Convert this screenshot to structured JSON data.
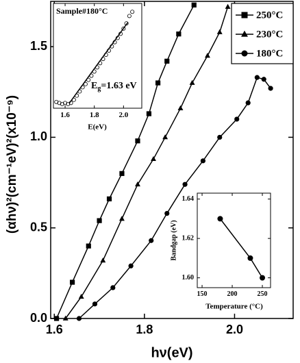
{
  "chart_data": [
    {
      "type": "scatter",
      "xlabel": "hν(eV)",
      "ylabel": "(αhν)²(cm⁻¹eV)²(x10⁻⁹)",
      "xlim": [
        1.592,
        2.13
      ],
      "ylim": [
        0,
        1.75
      ],
      "xticks": [
        1.6,
        1.8,
        {
          "value": 2.0,
          "label": "2.0"
        }
      ],
      "yticks": [
        {
          "value": 0,
          "label": "0.0"
        },
        0.5,
        {
          "value": 1.0,
          "label": "1.0"
        },
        1.5
      ],
      "legend": "upper right",
      "series": [
        {
          "name": "250°C",
          "marker": "square",
          "color": "#000000",
          "x": [
            1.605,
            1.64,
            1.676,
            1.7,
            1.722,
            1.75,
            1.785,
            1.81,
            1.83,
            1.85,
            1.876,
            1.91
          ],
          "values": [
            0.0,
            0.2,
            0.4,
            0.54,
            0.66,
            0.8,
            0.98,
            1.13,
            1.3,
            1.42,
            1.57,
            1.73
          ]
        },
        {
          "name": "230°C",
          "marker": "triangle",
          "color": "#000000",
          "x": [
            1.625,
            1.66,
            1.708,
            1.75,
            1.785,
            1.82,
            1.846,
            1.88,
            1.906,
            1.94,
            1.967,
            1.985
          ],
          "values": [
            0.0,
            0.12,
            0.32,
            0.55,
            0.74,
            0.88,
            1.0,
            1.16,
            1.3,
            1.45,
            1.58,
            1.72
          ]
        },
        {
          "name": "180°C",
          "marker": "circle",
          "color": "#000000",
          "x": [
            1.655,
            1.69,
            1.73,
            1.77,
            1.815,
            1.85,
            1.89,
            1.93,
            1.967,
            2.005,
            2.03,
            2.05,
            2.065,
            2.08
          ],
          "values": [
            0.0,
            0.08,
            0.17,
            0.29,
            0.43,
            0.58,
            0.74,
            0.87,
            1.0,
            1.1,
            1.19,
            1.33,
            1.32,
            1.27
          ]
        }
      ]
    },
    {
      "type": "scatter",
      "title": "Sample#180°C",
      "xlabel": "E(eV)",
      "xlim": [
        1.52,
        2.125
      ],
      "ylim": [
        0,
        1
      ],
      "xticks": [
        1.6,
        1.8,
        {
          "value": 2.0,
          "label": "2.0"
        }
      ],
      "annotation": {
        "text": "E",
        "sub": "g",
        "rest": "=1.63 eV"
      },
      "series": [
        {
          "marker": "open-circle",
          "color": "#000000",
          "x": [
            1.54,
            1.56,
            1.58,
            1.6,
            1.62,
            1.64,
            1.66,
            1.68,
            1.7,
            1.72,
            1.74,
            1.76,
            1.78,
            1.8,
            1.82,
            1.84,
            1.86,
            1.88,
            1.9,
            1.92,
            1.94,
            1.96,
            1.98,
            2.0,
            2.02,
            2.04,
            2.06
          ],
          "values": [
            0.06,
            0.05,
            0.04,
            0.05,
            0.04,
            0.05,
            0.08,
            0.12,
            0.16,
            0.2,
            0.23,
            0.27,
            0.31,
            0.35,
            0.39,
            0.43,
            0.47,
            0.51,
            0.55,
            0.59,
            0.63,
            0.67,
            0.71,
            0.76,
            0.81,
            0.88,
            0.92
          ]
        },
        {
          "marker": "none",
          "color": "#000000",
          "x": [
            1.63,
            2.03
          ],
          "values": [
            0.05,
            0.82
          ]
        }
      ]
    },
    {
      "type": "line",
      "xlabel": "Temperature (°C)",
      "ylabel": "Bandgap (eV)",
      "xlim": [
        142,
        263.6
      ],
      "ylim": [
        1.595,
        1.643
      ],
      "xticks": [
        150,
        200,
        250
      ],
      "yticks": [
        {
          "value": 1.6,
          "label": "1.60"
        },
        {
          "value": 1.62,
          "label": "1.62"
        },
        {
          "value": 1.64,
          "label": "1.64"
        }
      ],
      "series": [
        {
          "marker": "circle",
          "color": "#000000",
          "x": [
            180,
            230,
            250
          ],
          "values": [
            1.63,
            1.61,
            1.6
          ]
        }
      ]
    }
  ]
}
